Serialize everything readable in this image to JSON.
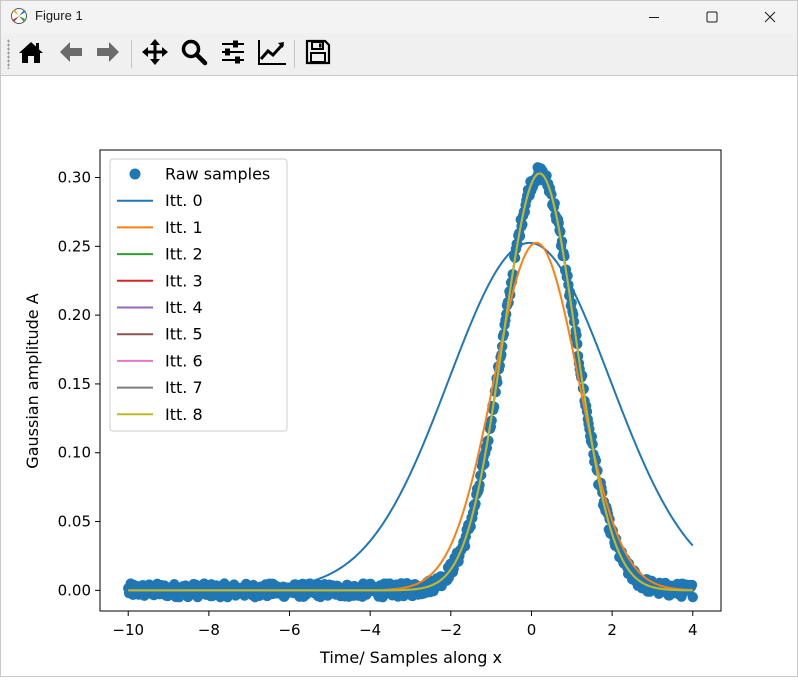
{
  "window": {
    "title": "Figure 1",
    "icons": {
      "app": "matplotlib-figure-icon",
      "minimize": "minimize-icon",
      "maximize": "maximize-icon",
      "close": "close-icon"
    }
  },
  "toolbar": {
    "buttons": [
      {
        "name": "home",
        "icon": "home-icon"
      },
      {
        "name": "back",
        "icon": "arrow-left-icon"
      },
      {
        "name": "forward",
        "icon": "arrow-right-icon"
      },
      {
        "name": "pan",
        "icon": "move-icon"
      },
      {
        "name": "zoom",
        "icon": "magnifier-icon"
      },
      {
        "name": "subplots",
        "icon": "sliders-icon"
      },
      {
        "name": "edit-axes",
        "icon": "line-chart-icon"
      },
      {
        "name": "save",
        "icon": "floppy-disk-icon"
      }
    ]
  },
  "chart_data": {
    "type": "line",
    "title": "",
    "xlabel": "Time/ Samples along x",
    "ylabel": "Gaussian amplitude A",
    "xlim": [
      -10.7,
      4.7
    ],
    "ylim": [
      -0.015,
      0.32
    ],
    "xticks": [
      -10,
      -8,
      -6,
      -4,
      -2,
      0,
      2,
      4
    ],
    "xtick_labels": [
      "−10",
      "−8",
      "−6",
      "−4",
      "−2",
      "0",
      "2",
      "4"
    ],
    "yticks": [
      0.0,
      0.05,
      0.1,
      0.15,
      0.2,
      0.25,
      0.3
    ],
    "ytick_labels": [
      "0.00",
      "0.05",
      "0.10",
      "0.15",
      "0.20",
      "0.25",
      "0.30"
    ],
    "grid": false,
    "legend_position": "upper-left",
    "scatter": {
      "name": "Raw samples",
      "color": "#1f77b4",
      "x_range": [
        -10,
        4
      ],
      "model": {
        "A": 0.303,
        "mu": 0.2,
        "sigma": 0.9
      },
      "noise_amplitude": 0.005
    },
    "series": [
      {
        "name": "Itt. 0",
        "color": "#1f77b4",
        "A": 0.2525,
        "mu": -0.05,
        "sigma": 2.0,
        "x_range": [
          -10,
          4
        ]
      },
      {
        "name": "Itt. 1",
        "color": "#ff7f0e",
        "A": 0.2525,
        "mu": 0.12,
        "sigma": 1.05,
        "x_range": [
          -10,
          4
        ]
      },
      {
        "name": "Itt. 2",
        "color": "#2ca02c",
        "A": 0.303,
        "mu": 0.2,
        "sigma": 0.9,
        "x_range": [
          -10,
          4
        ]
      },
      {
        "name": "Itt. 3",
        "color": "#d62728",
        "A": 0.303,
        "mu": 0.2,
        "sigma": 0.9,
        "x_range": [
          -10,
          4
        ]
      },
      {
        "name": "Itt. 4",
        "color": "#9467bd",
        "A": 0.303,
        "mu": 0.2,
        "sigma": 0.9,
        "x_range": [
          -10,
          4
        ]
      },
      {
        "name": "Itt. 5",
        "color": "#8c564b",
        "A": 0.303,
        "mu": 0.2,
        "sigma": 0.9,
        "x_range": [
          -10,
          4
        ]
      },
      {
        "name": "Itt. 6",
        "color": "#e377c2",
        "A": 0.303,
        "mu": 0.2,
        "sigma": 0.9,
        "x_range": [
          -10,
          4
        ]
      },
      {
        "name": "Itt. 7",
        "color": "#7f7f7f",
        "A": 0.303,
        "mu": 0.2,
        "sigma": 0.9,
        "x_range": [
          -10,
          4
        ]
      },
      {
        "name": "Itt. 8",
        "color": "#bcbd22",
        "A": 0.303,
        "mu": 0.2,
        "sigma": 0.9,
        "x_range": [
          -10,
          4
        ]
      }
    ]
  }
}
